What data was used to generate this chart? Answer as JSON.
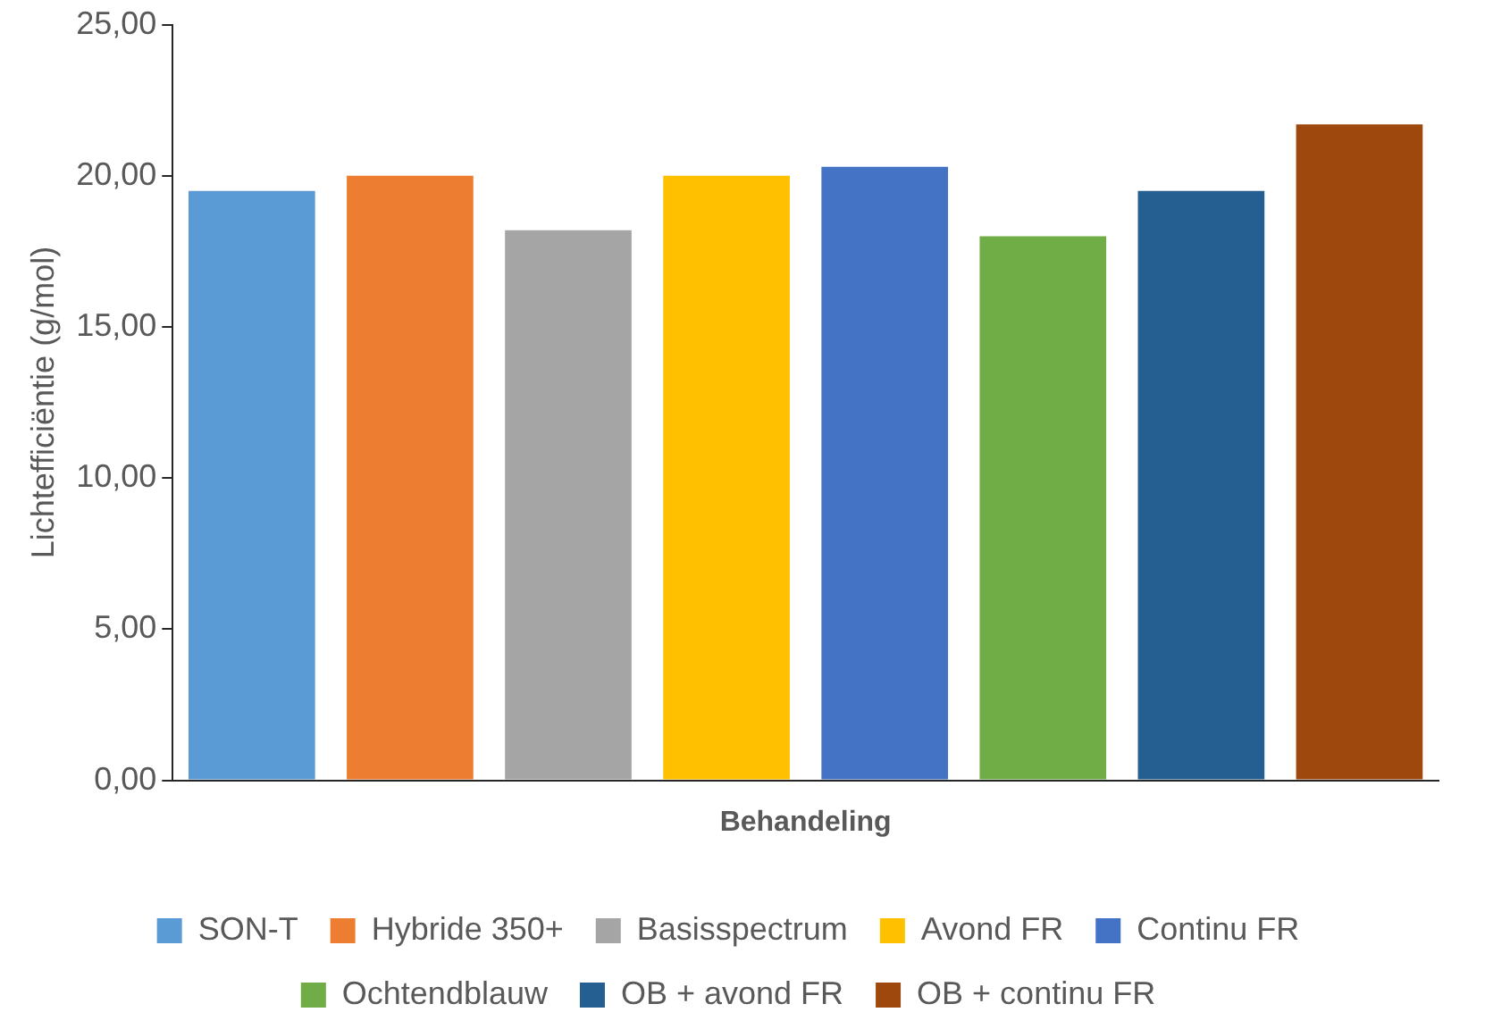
{
  "chart_data": {
    "type": "bar",
    "xlabel": "Behandeling",
    "ylabel": "Lichtefficiëntie (g/mol)",
    "categories": [
      null,
      null,
      null,
      null,
      null,
      null,
      null,
      null
    ],
    "series": [
      {
        "name": "SON-T",
        "color": "#5b9bd5",
        "values": [
          19.5,
          null,
          null,
          null,
          null,
          null,
          null,
          null
        ]
      },
      {
        "name": "Hybride 350+",
        "color": "#ed7d31",
        "values": [
          null,
          20.0,
          null,
          null,
          null,
          null,
          null,
          null
        ]
      },
      {
        "name": "Basisspectrum",
        "color": "#a5a5a5",
        "values": [
          null,
          null,
          18.2,
          null,
          null,
          null,
          null,
          null
        ]
      },
      {
        "name": "Avond FR",
        "color": "#ffc000",
        "values": [
          null,
          null,
          null,
          20.0,
          null,
          null,
          null,
          null
        ]
      },
      {
        "name": "Continu FR",
        "color": "#4472c4",
        "values": [
          null,
          null,
          null,
          null,
          20.3,
          null,
          null,
          null
        ]
      },
      {
        "name": "Ochtendblauw",
        "color": "#70ad47",
        "values": [
          null,
          null,
          null,
          null,
          null,
          18.0,
          null,
          null
        ]
      },
      {
        "name": "OB + avond FR",
        "color": "#255e91",
        "values": [
          null,
          null,
          null,
          null,
          null,
          null,
          19.5,
          null
        ]
      },
      {
        "name": "OB + continu FR",
        "color": "#9e480e",
        "values": [
          null,
          null,
          null,
          null,
          null,
          null,
          null,
          21.7
        ]
      }
    ],
    "ylim": [
      0,
      25
    ],
    "yticks": [
      {
        "value": 0,
        "label": "0,00"
      },
      {
        "value": 5,
        "label": "5,00"
      },
      {
        "value": 10,
        "label": "10,00"
      },
      {
        "value": 15,
        "label": "15,00"
      },
      {
        "value": 20,
        "label": "20,00"
      },
      {
        "value": 25,
        "label": "25,00"
      }
    ],
    "legend": "bottom"
  }
}
